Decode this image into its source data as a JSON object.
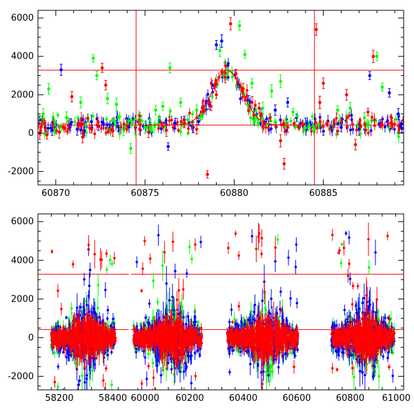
{
  "chart_data": [
    {
      "type": "scatter",
      "title": "",
      "xlabel": "",
      "ylabel": "",
      "xlim": [
        60869,
        60889.5
      ],
      "ylim": [
        -2700,
        6400
      ],
      "xticks": [
        "60870",
        "60875",
        "60880",
        "60885"
      ],
      "xtick_values": [
        60870,
        60875,
        60880,
        60885
      ],
      "yticks": [
        "-2000",
        "0",
        "2000",
        "4000",
        "6000"
      ],
      "ytick_values": [
        -2000,
        0,
        2000,
        4000,
        6000
      ],
      "hlines": [
        3280,
        420
      ],
      "vlines": [
        60874.5,
        60884.5
      ],
      "model_curve": {
        "color": "#ff0000",
        "baseline": 420,
        "peak": 3280,
        "center": 60879.6,
        "width": 0.85
      },
      "series": [
        {
          "color": "#0000ff",
          "points": [
            [
              60869.1,
              700
            ],
            [
              60869.4,
              300
            ],
            [
              60869.8,
              150
            ],
            [
              60870.3,
              3300
            ],
            [
              60870.8,
              450
            ],
            [
              60871.2,
              200
            ],
            [
              60871.6,
              120
            ],
            [
              60872.0,
              600
            ],
            [
              60872.4,
              350
            ],
            [
              60873.0,
              250
            ],
            [
              60873.5,
              320
            ],
            [
              60874.0,
              400
            ],
            [
              60875.3,
              300
            ],
            [
              60875.8,
              600
            ],
            [
              60876.3,
              -700
            ],
            [
              60876.7,
              500
            ],
            [
              60877.2,
              700
            ],
            [
              60877.7,
              300
            ],
            [
              60878.0,
              600
            ],
            [
              60878.6,
              1500
            ],
            [
              60879.0,
              4600
            ],
            [
              60879.3,
              4800
            ],
            [
              60880.2,
              2600
            ],
            [
              60880.8,
              1700
            ],
            [
              60881.5,
              1000
            ],
            [
              60882.3,
              1200
            ],
            [
              60883.0,
              1600
            ],
            [
              60883.5,
              800
            ],
            [
              60884.0,
              500
            ],
            [
              60885.0,
              100
            ],
            [
              60885.6,
              500
            ],
            [
              60886.0,
              300
            ],
            [
              60887.0,
              200
            ],
            [
              60887.6,
              3000
            ],
            [
              60888.2,
              500
            ],
            [
              60888.7,
              2100
            ],
            [
              60889.2,
              1000
            ],
            [
              60889.4,
              250
            ]
          ]
        },
        {
          "color": "#00ff00",
          "points": [
            [
              60869.3,
              1000
            ],
            [
              60869.6,
              2300
            ],
            [
              60870.0,
              200
            ],
            [
              60870.6,
              800
            ],
            [
              60871.4,
              1600
            ],
            [
              60871.8,
              800
            ],
            [
              60872.1,
              3900
            ],
            [
              60872.3,
              3000
            ],
            [
              60872.9,
              1800
            ],
            [
              60873.4,
              1500
            ],
            [
              60873.8,
              200
            ],
            [
              60874.2,
              -800
            ],
            [
              60875.0,
              300
            ],
            [
              60875.6,
              1200
            ],
            [
              60876.0,
              1400
            ],
            [
              60876.4,
              3400
            ],
            [
              60877.0,
              1600
            ],
            [
              60877.4,
              700
            ],
            [
              60877.9,
              1200
            ],
            [
              60878.2,
              900
            ],
            [
              60879.2,
              4300
            ],
            [
              60879.6,
              3100
            ],
            [
              60880.3,
              5600
            ],
            [
              60880.6,
              4100
            ],
            [
              60881.0,
              2600
            ],
            [
              60881.6,
              1300
            ],
            [
              60882.1,
              2200
            ],
            [
              60882.6,
              2700
            ],
            [
              60883.3,
              1100
            ],
            [
              60884.2,
              400
            ],
            [
              60885.8,
              1200
            ],
            [
              60886.5,
              1300
            ],
            [
              60887.3,
              800
            ],
            [
              60888.0,
              4000
            ],
            [
              60888.3,
              2400
            ]
          ]
        },
        {
          "color": "#ff0000",
          "points": [
            [
              60869.1,
              0
            ],
            [
              60869.5,
              -100
            ],
            [
              60870.2,
              50
            ],
            [
              60870.9,
              1900
            ],
            [
              60871.5,
              -200
            ],
            [
              60872.0,
              200
            ],
            [
              60872.6,
              3400
            ],
            [
              60872.8,
              2500
            ],
            [
              60873.2,
              100
            ],
            [
              60874.7,
              200
            ],
            [
              60875.2,
              50
            ],
            [
              60876.2,
              150
            ],
            [
              60877.2,
              500
            ],
            [
              60877.9,
              200
            ],
            [
              60878.5,
              -2150
            ],
            [
              60878.7,
              1400
            ],
            [
              60879.0,
              2000
            ],
            [
              60879.5,
              2900
            ],
            [
              60879.8,
              5700
            ],
            [
              60880.1,
              3100
            ],
            [
              60880.5,
              2300
            ],
            [
              60881.0,
              1600
            ],
            [
              60881.4,
              1300
            ],
            [
              60882.0,
              800
            ],
            [
              60882.6,
              -400
            ],
            [
              60882.8,
              -1600
            ],
            [
              60883.0,
              300
            ],
            [
              60884.6,
              5400
            ],
            [
              60884.8,
              1600
            ],
            [
              60885.0,
              2600
            ],
            [
              60885.8,
              100
            ],
            [
              60886.3,
              2000
            ],
            [
              60886.8,
              -600
            ],
            [
              60887.5,
              1100
            ],
            [
              60887.8,
              4000
            ]
          ]
        }
      ]
    },
    {
      "type": "scatter",
      "title": "",
      "xlabel": "",
      "ylabel": "",
      "xlim": [
        58120,
        61000
      ],
      "ylim": [
        -2700,
        6400
      ],
      "x_break": {
        "left_end": 58460,
        "right_start": 59980,
        "gap_px": 3
      },
      "xticks": [
        "58200",
        "58400",
        "60000",
        "60200",
        "60400",
        "60600",
        "60800",
        "61000"
      ],
      "xtick_values": [
        58200,
        58400,
        60000,
        60200,
        60400,
        60600,
        60800,
        61000
      ],
      "yticks": [
        "-2000",
        "0",
        "2000",
        "4000",
        "6000"
      ],
      "ytick_values": [
        -2000,
        0,
        2000,
        4000,
        6000
      ],
      "hlines": [
        3280,
        420
      ],
      "seasons": [
        [
          58170,
          58410
        ],
        [
          59990,
          60245
        ],
        [
          60340,
          60605
        ],
        [
          60730,
          60965
        ]
      ],
      "points_per_season": 900,
      "series": [
        {
          "color": "#00ff00",
          "spread": 1400,
          "share": 0.18
        },
        {
          "color": "#0000ff",
          "spread": 1500,
          "share": 0.3
        },
        {
          "color": "#ff0000",
          "spread": 700,
          "share": 0.52
        }
      ]
    }
  ]
}
